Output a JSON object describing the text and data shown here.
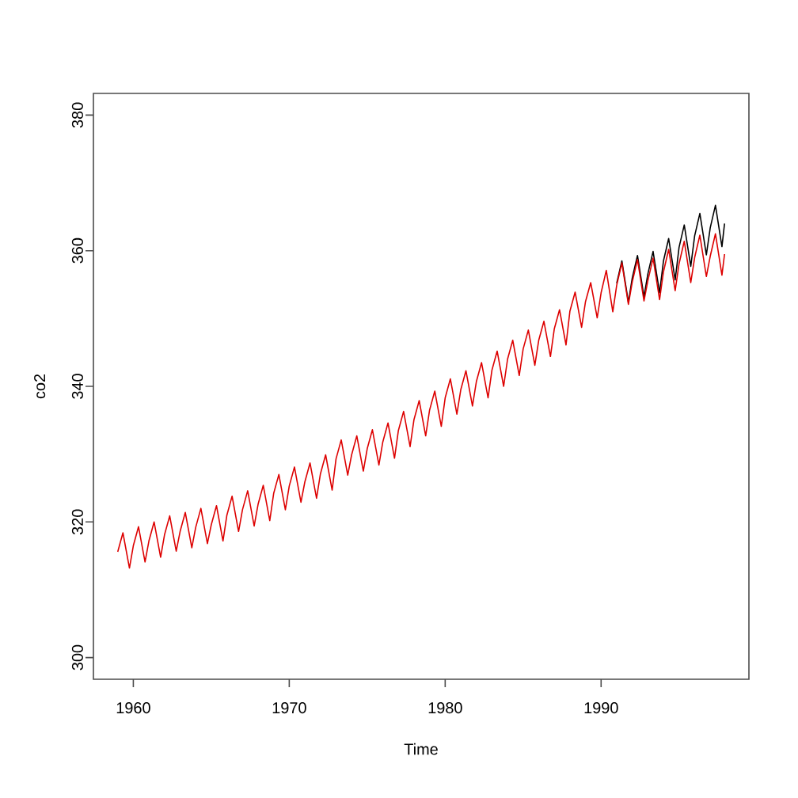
{
  "chart_data": {
    "type": "line",
    "xlabel": "Time",
    "ylabel": "co2",
    "xlim": [
      1957.44,
      1999.48
    ],
    "ylim": [
      296.8,
      383.2
    ],
    "xticks": [
      1960,
      1970,
      1980,
      1990
    ],
    "yticks": [
      300,
      320,
      340,
      360,
      380
    ],
    "grid": false,
    "marker": "none",
    "line_style": "solid",
    "x": [
      1959,
      1959.333,
      1959.75,
      1960,
      1960.333,
      1960.75,
      1961,
      1961.333,
      1961.75,
      1962,
      1962.333,
      1962.75,
      1963,
      1963.333,
      1963.75,
      1964,
      1964.333,
      1964.75,
      1965,
      1965.333,
      1965.75,
      1966,
      1966.333,
      1966.75,
      1967,
      1967.333,
      1967.75,
      1968,
      1968.333,
      1968.75,
      1969,
      1969.333,
      1969.75,
      1970,
      1970.333,
      1970.75,
      1971,
      1971.333,
      1971.75,
      1972,
      1972.333,
      1972.75,
      1973,
      1973.333,
      1973.75,
      1974,
      1974.333,
      1974.75,
      1975,
      1975.333,
      1975.75,
      1976,
      1976.333,
      1976.75,
      1977,
      1977.333,
      1977.75,
      1978,
      1978.333,
      1978.75,
      1979,
      1979.333,
      1979.75,
      1980,
      1980.333,
      1980.75,
      1981,
      1981.333,
      1981.75,
      1982,
      1982.333,
      1982.75,
      1983,
      1983.333,
      1983.75,
      1984,
      1984.333,
      1984.75,
      1985,
      1985.333,
      1985.75,
      1986,
      1986.333,
      1986.75,
      1987,
      1987.333,
      1987.75,
      1988,
      1988.333,
      1988.75,
      1989,
      1989.333,
      1989.75,
      1990,
      1990.333,
      1990.75,
      1991,
      1991.333,
      1991.75,
      1992,
      1992.333,
      1992.75,
      1993,
      1993.333,
      1993.75,
      1994,
      1994.333,
      1994.75,
      1995,
      1995.333,
      1995.75,
      1996,
      1996.333,
      1996.75,
      1997,
      1997.333,
      1997.75,
      1997.917
    ],
    "series": [
      {
        "color": "#000000",
        "values": [
          null,
          null,
          null,
          null,
          null,
          null,
          null,
          null,
          null,
          null,
          null,
          null,
          null,
          null,
          null,
          null,
          null,
          null,
          null,
          null,
          null,
          null,
          null,
          null,
          null,
          null,
          null,
          null,
          null,
          null,
          null,
          null,
          null,
          null,
          null,
          null,
          null,
          null,
          null,
          null,
          null,
          null,
          null,
          null,
          null,
          null,
          null,
          null,
          null,
          null,
          null,
          null,
          null,
          null,
          null,
          null,
          null,
          null,
          null,
          null,
          null,
          null,
          null,
          null,
          null,
          null,
          null,
          null,
          null,
          null,
          null,
          null,
          null,
          null,
          null,
          null,
          null,
          null,
          null,
          null,
          null,
          null,
          null,
          null,
          null,
          null,
          null,
          null,
          null,
          null,
          null,
          null,
          null,
          null,
          null,
          null,
          355.2,
          358.5,
          352.4,
          356.0,
          359.3,
          353.2,
          356.6,
          359.9,
          353.8,
          358.5,
          361.8,
          355.7,
          360.5,
          363.8,
          357.7,
          362.2,
          365.5,
          359.4,
          363.4,
          366.7,
          360.6,
          364.0
        ]
      },
      {
        "color": "#dd0000",
        "values": [
          315.6,
          318.4,
          313.2,
          316.5,
          319.3,
          314.1,
          317.2,
          320.0,
          314.8,
          318.1,
          320.9,
          315.7,
          318.6,
          321.4,
          316.2,
          319.2,
          322.0,
          316.8,
          319.6,
          322.4,
          317.2,
          321.0,
          323.8,
          318.6,
          321.8,
          324.6,
          319.4,
          322.6,
          325.4,
          320.2,
          324.2,
          327.0,
          321.8,
          325.3,
          328.1,
          322.9,
          325.9,
          328.7,
          323.5,
          327.1,
          329.9,
          324.7,
          329.3,
          332.1,
          326.9,
          329.9,
          332.7,
          327.5,
          330.8,
          333.6,
          328.4,
          331.8,
          334.6,
          329.4,
          333.5,
          336.3,
          331.1,
          335.1,
          337.9,
          332.7,
          336.5,
          339.3,
          334.1,
          338.3,
          341.1,
          335.9,
          339.5,
          342.3,
          337.1,
          340.7,
          343.5,
          338.3,
          342.4,
          345.2,
          340.0,
          344.0,
          346.8,
          341.6,
          345.5,
          348.3,
          343.1,
          346.8,
          349.6,
          344.4,
          348.5,
          351.3,
          346.1,
          351.1,
          353.9,
          348.7,
          352.5,
          355.3,
          350.1,
          353.8,
          357.1,
          351.0,
          354.9,
          358.2,
          352.1,
          355.4,
          358.7,
          352.6,
          355.6,
          358.9,
          352.8,
          356.9,
          360.2,
          354.1,
          358.1,
          361.4,
          355.3,
          359.0,
          362.3,
          356.2,
          359.2,
          362.5,
          356.4,
          359.5
        ]
      }
    ]
  }
}
